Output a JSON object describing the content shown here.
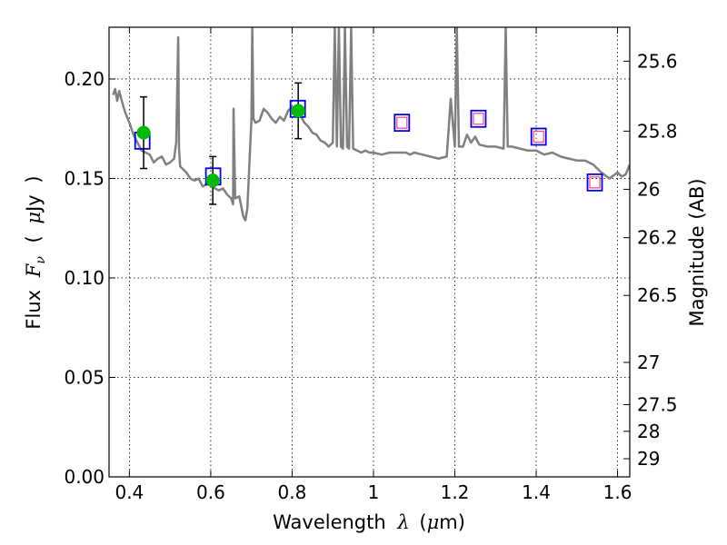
{
  "chart_data": {
    "type": "line",
    "xlabel_parts": [
      "Wavelength",
      "λ",
      "(",
      "μ",
      "m)"
    ],
    "ylabel_parts": [
      "Flux",
      "F",
      "ν",
      "(",
      "μ",
      "Jy",
      ")"
    ],
    "y2label": "Magnitude (AB)",
    "xlim": [
      0.35,
      1.63
    ],
    "ylim": [
      0.0,
      0.226
    ],
    "grid": true,
    "x_ticks": [
      {
        "value": 0.4,
        "label": "0.4"
      },
      {
        "value": 0.6,
        "label": "0.6"
      },
      {
        "value": 0.8,
        "label": "0.8"
      },
      {
        "value": 1.0,
        "label": "1"
      },
      {
        "value": 1.2,
        "label": "1.2"
      },
      {
        "value": 1.4,
        "label": "1.4"
      },
      {
        "value": 1.6,
        "label": "1.6"
      }
    ],
    "y_ticks": [
      {
        "value": 0.0,
        "label": "0.00"
      },
      {
        "value": 0.05,
        "label": "0.05"
      },
      {
        "value": 0.1,
        "label": "0.10"
      },
      {
        "value": 0.15,
        "label": "0.15"
      },
      {
        "value": 0.2,
        "label": "0.20"
      }
    ],
    "y2_ticks": [
      {
        "mag": 25.6,
        "label": "25.6"
      },
      {
        "mag": 25.8,
        "label": "25.8"
      },
      {
        "mag": 26.0,
        "label": "26"
      },
      {
        "mag": 26.2,
        "label": "26.2"
      },
      {
        "mag": 26.5,
        "label": "26.5"
      },
      {
        "mag": 27.0,
        "label": "27"
      },
      {
        "mag": 27.5,
        "label": "27.5"
      },
      {
        "mag": 28.0,
        "label": "28"
      },
      {
        "mag": 29.0,
        "label": "29"
      }
    ],
    "spectrum": {
      "color": "#808080",
      "x": [
        0.36,
        0.365,
        0.37,
        0.375,
        0.38,
        0.39,
        0.4,
        0.41,
        0.42,
        0.43,
        0.44,
        0.45,
        0.46,
        0.47,
        0.48,
        0.49,
        0.5,
        0.51,
        0.515,
        0.52,
        0.522,
        0.525,
        0.53,
        0.54,
        0.55,
        0.56,
        0.57,
        0.58,
        0.59,
        0.6,
        0.61,
        0.62,
        0.63,
        0.64,
        0.65,
        0.655,
        0.656,
        0.66,
        0.67,
        0.68,
        0.685,
        0.69,
        0.7,
        0.702,
        0.705,
        0.71,
        0.72,
        0.73,
        0.74,
        0.75,
        0.76,
        0.77,
        0.78,
        0.79,
        0.8,
        0.81,
        0.82,
        0.83,
        0.84,
        0.85,
        0.86,
        0.87,
        0.88,
        0.89,
        0.9,
        0.905,
        0.91,
        0.915,
        0.92,
        0.925,
        0.93,
        0.935,
        0.94,
        0.945,
        0.95,
        0.96,
        0.97,
        0.98,
        0.99,
        1.0,
        1.02,
        1.04,
        1.06,
        1.08,
        1.09,
        1.1,
        1.12,
        1.14,
        1.16,
        1.18,
        1.19,
        1.2,
        1.205,
        1.21,
        1.22,
        1.23,
        1.24,
        1.25,
        1.26,
        1.28,
        1.3,
        1.32,
        1.325,
        1.33,
        1.34,
        1.36,
        1.38,
        1.4,
        1.42,
        1.44,
        1.46,
        1.48,
        1.5,
        1.52,
        1.54,
        1.56,
        1.58,
        1.6,
        1.61,
        1.62,
        1.63
      ],
      "y": [
        0.192,
        0.195,
        0.189,
        0.194,
        0.19,
        0.183,
        0.178,
        0.172,
        0.168,
        0.164,
        0.163,
        0.162,
        0.158,
        0.16,
        0.161,
        0.157,
        0.158,
        0.16,
        0.168,
        0.221,
        0.165,
        0.156,
        0.155,
        0.153,
        0.15,
        0.149,
        0.15,
        0.146,
        0.147,
        0.148,
        0.145,
        0.144,
        0.145,
        0.142,
        0.14,
        0.137,
        0.185,
        0.14,
        0.141,
        0.131,
        0.129,
        0.135,
        0.18,
        0.226,
        0.18,
        0.178,
        0.179,
        0.185,
        0.183,
        0.18,
        0.178,
        0.181,
        0.179,
        0.184,
        0.186,
        0.181,
        0.182,
        0.178,
        0.176,
        0.173,
        0.172,
        0.169,
        0.168,
        0.166,
        0.168,
        0.226,
        0.166,
        0.226,
        0.166,
        0.165,
        0.226,
        0.166,
        0.165,
        0.226,
        0.165,
        0.164,
        0.163,
        0.164,
        0.163,
        0.163,
        0.162,
        0.163,
        0.163,
        0.163,
        0.162,
        0.163,
        0.162,
        0.161,
        0.16,
        0.161,
        0.19,
        0.166,
        0.226,
        0.166,
        0.166,
        0.172,
        0.168,
        0.171,
        0.167,
        0.166,
        0.166,
        0.165,
        0.226,
        0.166,
        0.166,
        0.165,
        0.164,
        0.164,
        0.162,
        0.163,
        0.161,
        0.16,
        0.159,
        0.159,
        0.157,
        0.153,
        0.15,
        0.153,
        0.151,
        0.152,
        0.157
      ]
    },
    "measured": {
      "marker_color": "#00bb00",
      "points": [
        {
          "x": 0.435,
          "y": 0.173,
          "yerr": 0.018
        },
        {
          "x": 0.605,
          "y": 0.149,
          "yerr": 0.012
        },
        {
          "x": 0.815,
          "y": 0.184,
          "yerr": 0.014
        }
      ]
    },
    "model_bands": {
      "edge_color": "#0000ee",
      "x": [
        0.432,
        0.606,
        0.814,
        1.07,
        1.258,
        1.406,
        1.544
      ],
      "y": [
        0.169,
        0.151,
        0.185,
        0.178,
        0.18,
        0.171,
        0.148
      ]
    },
    "model_inner": {
      "edge_color": "#ff4d88",
      "x": [
        1.07,
        1.258,
        1.406,
        1.544
      ],
      "y": [
        0.178,
        0.18,
        0.171,
        0.148
      ]
    }
  }
}
